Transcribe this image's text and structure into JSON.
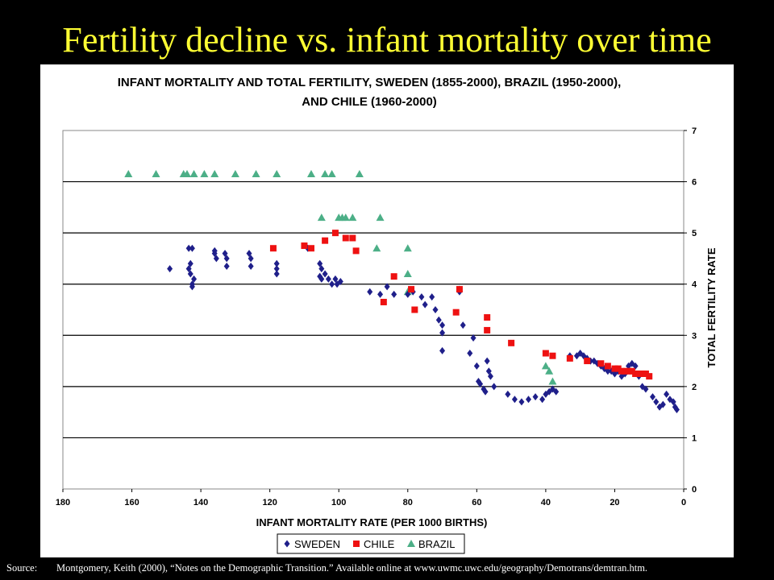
{
  "slide": {
    "title": "Fertility decline vs. infant mortality over time",
    "source_label": "Source:",
    "source_text": "Montgomery, Keith (2000), “Notes on the Demographic Transition.”  Available online at www.uwmc.uwc.edu/geography/Demotrans/demtran.htm."
  },
  "chart_data": {
    "type": "scatter",
    "title_lines": [
      "INFANT MORTALITY AND TOTAL FERTILITY, SWEDEN (1855-2000), BRAZIL (1950-2000),",
      "AND CHILE (1960-2000)"
    ],
    "xlabel": "INFANT MORTALITY RATE (PER 1000 BIRTHS)",
    "ylabel": "TOTAL FERTILITY RATE",
    "xlim": [
      180,
      0
    ],
    "ylim": [
      0,
      7
    ],
    "x_reversed": true,
    "y_axis_side": "right",
    "x_ticks": [
      180,
      160,
      140,
      120,
      100,
      80,
      60,
      40,
      20,
      0
    ],
    "y_ticks": [
      0,
      1,
      2,
      3,
      4,
      5,
      6,
      7
    ],
    "grid": "horizontal",
    "legend_position": "bottom",
    "series": [
      {
        "name": "SWEDEN",
        "marker": "diamond",
        "color": "#1f1f8a",
        "points": [
          [
            149,
            4.3
          ],
          [
            143.5,
            4.7
          ],
          [
            143,
            4.4
          ],
          [
            142.5,
            4.7
          ],
          [
            143.5,
            4.3
          ],
          [
            143,
            4.2
          ],
          [
            142.5,
            4.0
          ],
          [
            142.5,
            3.95
          ],
          [
            142,
            4.1
          ],
          [
            136,
            4.65
          ],
          [
            136,
            4.6
          ],
          [
            135.5,
            4.5
          ],
          [
            133,
            4.6
          ],
          [
            132.5,
            4.5
          ],
          [
            132.5,
            4.35
          ],
          [
            126,
            4.6
          ],
          [
            125.5,
            4.5
          ],
          [
            125.5,
            4.35
          ],
          [
            118,
            4.4
          ],
          [
            118,
            4.3
          ],
          [
            118,
            4.2
          ],
          [
            109,
            4.7
          ],
          [
            105.5,
            4.4
          ],
          [
            105,
            4.3
          ],
          [
            105.5,
            4.15
          ],
          [
            105,
            4.1
          ],
          [
            104,
            4.2
          ],
          [
            103,
            4.1
          ],
          [
            102,
            4.0
          ],
          [
            101,
            4.1
          ],
          [
            100.5,
            4.0
          ],
          [
            99.5,
            4.05
          ],
          [
            91,
            3.85
          ],
          [
            88,
            3.8
          ],
          [
            86,
            3.95
          ],
          [
            84,
            3.8
          ],
          [
            80,
            3.8
          ],
          [
            78.5,
            3.85
          ],
          [
            76,
            3.75
          ],
          [
            75,
            3.6
          ],
          [
            73,
            3.75
          ],
          [
            72,
            3.5
          ],
          [
            71,
            3.3
          ],
          [
            70,
            3.2
          ],
          [
            70,
            3.05
          ],
          [
            70,
            2.7
          ],
          [
            65,
            3.9
          ],
          [
            65,
            3.85
          ],
          [
            64,
            3.2
          ],
          [
            62,
            2.65
          ],
          [
            61,
            2.95
          ],
          [
            60,
            2.4
          ],
          [
            59.5,
            2.1
          ],
          [
            59,
            2.05
          ],
          [
            58,
            1.95
          ],
          [
            57.5,
            1.9
          ],
          [
            57,
            2.5
          ],
          [
            56.5,
            2.3
          ],
          [
            56,
            2.2
          ],
          [
            55,
            2.0
          ],
          [
            51,
            1.85
          ],
          [
            49,
            1.75
          ],
          [
            47,
            1.7
          ],
          [
            45,
            1.75
          ],
          [
            43,
            1.8
          ],
          [
            41,
            1.75
          ],
          [
            40,
            1.85
          ],
          [
            39,
            1.9
          ],
          [
            38,
            1.95
          ],
          [
            37,
            1.9
          ],
          [
            33,
            2.6
          ],
          [
            31,
            2.6
          ],
          [
            30,
            2.65
          ],
          [
            29,
            2.6
          ],
          [
            28,
            2.55
          ],
          [
            27,
            2.5
          ],
          [
            26,
            2.5
          ],
          [
            25,
            2.45
          ],
          [
            24,
            2.4
          ],
          [
            23,
            2.35
          ],
          [
            22,
            2.3
          ],
          [
            21,
            2.3
          ],
          [
            20,
            2.25
          ],
          [
            19,
            2.3
          ],
          [
            18,
            2.2
          ],
          [
            17,
            2.25
          ],
          [
            16,
            2.4
          ],
          [
            15,
            2.45
          ],
          [
            14,
            2.4
          ],
          [
            13,
            2.2
          ],
          [
            12,
            2.0
          ],
          [
            11,
            1.95
          ],
          [
            9,
            1.8
          ],
          [
            8,
            1.7
          ],
          [
            7,
            1.6
          ],
          [
            6,
            1.65
          ],
          [
            5,
            1.85
          ],
          [
            4,
            1.75
          ],
          [
            3,
            1.7
          ],
          [
            2.5,
            1.6
          ],
          [
            2,
            1.55
          ]
        ]
      },
      {
        "name": "CHILE",
        "marker": "square",
        "color": "#ee1111",
        "points": [
          [
            119,
            4.7
          ],
          [
            110,
            4.75
          ],
          [
            108,
            4.7
          ],
          [
            104,
            4.85
          ],
          [
            101,
            5.0
          ],
          [
            98,
            4.9
          ],
          [
            96,
            4.9
          ],
          [
            95,
            4.65
          ],
          [
            87,
            3.65
          ],
          [
            84,
            4.15
          ],
          [
            79,
            3.9
          ],
          [
            78,
            3.5
          ],
          [
            66,
            3.45
          ],
          [
            65,
            3.9
          ],
          [
            57,
            3.35
          ],
          [
            57,
            3.1
          ],
          [
            50,
            2.85
          ],
          [
            40,
            2.65
          ],
          [
            38,
            2.6
          ],
          [
            33,
            2.55
          ],
          [
            28,
            2.5
          ],
          [
            24,
            2.45
          ],
          [
            22,
            2.4
          ],
          [
            20,
            2.35
          ],
          [
            19,
            2.35
          ],
          [
            18,
            2.3
          ],
          [
            17,
            2.3
          ],
          [
            16,
            2.3
          ],
          [
            15,
            2.3
          ],
          [
            14,
            2.25
          ],
          [
            13,
            2.25
          ],
          [
            12,
            2.25
          ],
          [
            11,
            2.25
          ],
          [
            10,
            2.2
          ]
        ]
      },
      {
        "name": "BRAZIL",
        "marker": "triangle",
        "color": "#4caf87",
        "points": [
          [
            161,
            6.15
          ],
          [
            153,
            6.15
          ],
          [
            145,
            6.15
          ],
          [
            144,
            6.15
          ],
          [
            142,
            6.15
          ],
          [
            139,
            6.15
          ],
          [
            136,
            6.15
          ],
          [
            130,
            6.15
          ],
          [
            124,
            6.15
          ],
          [
            118,
            6.15
          ],
          [
            108,
            6.15
          ],
          [
            104,
            6.15
          ],
          [
            102,
            6.15
          ],
          [
            94,
            6.15
          ],
          [
            105,
            5.3
          ],
          [
            100,
            5.3
          ],
          [
            99,
            5.3
          ],
          [
            98,
            5.3
          ],
          [
            96,
            5.3
          ],
          [
            88,
            5.3
          ],
          [
            89,
            4.7
          ],
          [
            80,
            4.7
          ],
          [
            80,
            4.2
          ],
          [
            80,
            3.85
          ],
          [
            40,
            2.4
          ],
          [
            39,
            2.3
          ],
          [
            38,
            2.1
          ]
        ]
      }
    ]
  }
}
